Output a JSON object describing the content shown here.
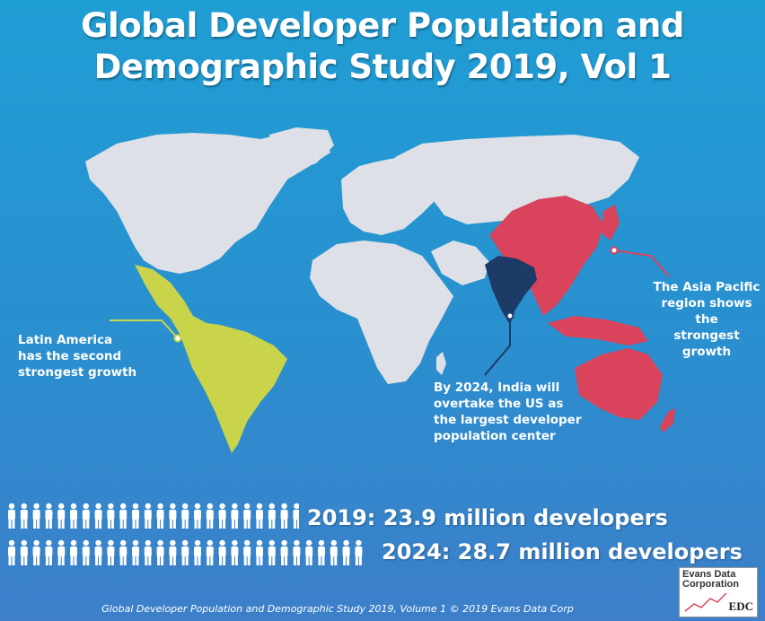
{
  "title": {
    "line1": "Global Developer Population and",
    "line2": "Demographic Study 2019, Vol 1"
  },
  "callouts": {
    "latam": [
      "Latin America",
      "has the second",
      "strongest growth"
    ],
    "india": [
      "By 2024, India will",
      "overtake the US as",
      "the largest developer",
      "population center"
    ],
    "apac": [
      "The Asia Pacific",
      "region shows the",
      "strongest growth"
    ]
  },
  "stats": {
    "y2019": "2019: 23.9 million developers",
    "y2024": "2024: 28.7 million developers",
    "people_count_2019": 24,
    "people_count_2024": 29
  },
  "logo": {
    "line1": "Evans Data",
    "line2": "Corporation",
    "abbr": "EDC"
  },
  "footer": "Global Developer Population and Demographic Study 2019, Volume 1 © 2019 Evans Data Corp",
  "colors": {
    "background": "#2196d0",
    "land": "#dde0e6",
    "latin_america": "#c9d44a",
    "india": "#1e3a66",
    "asia_pacific": "#d9435b",
    "callout_line_latam": "#c9d44a",
    "callout_line_india": "#1e3a66",
    "callout_line_apac": "#d9435b"
  }
}
